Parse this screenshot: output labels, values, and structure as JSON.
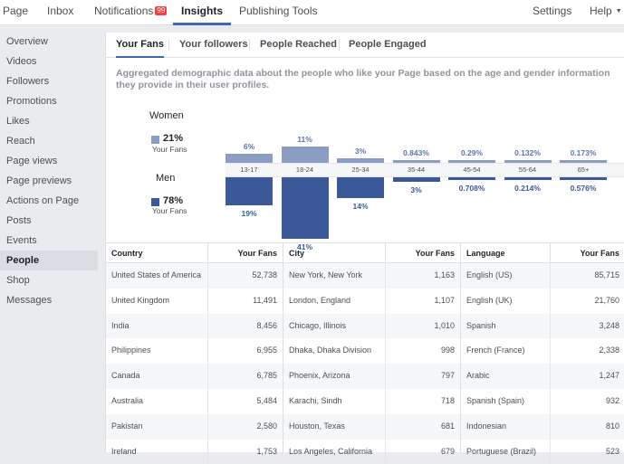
{
  "topnav": {
    "page": "Page",
    "inbox": "Inbox",
    "notifications": "Notifications",
    "notifications_badge": "99",
    "insights": "Insights",
    "publishing_tools": "Publishing Tools",
    "settings": "Settings",
    "help": "Help"
  },
  "sidebar": {
    "items": [
      {
        "label": "Overview"
      },
      {
        "label": "Videos"
      },
      {
        "label": "Followers"
      },
      {
        "label": "Promotions"
      },
      {
        "label": "Likes"
      },
      {
        "label": "Reach"
      },
      {
        "label": "Page views"
      },
      {
        "label": "Page previews"
      },
      {
        "label": "Actions on Page"
      },
      {
        "label": "Posts"
      },
      {
        "label": "Events"
      },
      {
        "label": "People"
      },
      {
        "label": "Shop"
      },
      {
        "label": "Messages"
      }
    ]
  },
  "subtabs": {
    "your_fans": "Your Fans",
    "your_followers": "Your followers",
    "people_reached": "People Reached",
    "people_engaged": "People Engaged"
  },
  "description": "Aggregated demographic data about the people who like your Page based on the age and gender information they provide in their user profiles.",
  "gender": {
    "women_label": "Women",
    "women_pct": "21%",
    "women_sub": "Your Fans",
    "men_label": "Men",
    "men_pct": "78%",
    "men_sub": "Your Fans",
    "women_color": "#8b9dc3",
    "men_color": "#3b5998"
  },
  "chart_data": {
    "type": "bar",
    "categories": [
      "13-17",
      "18-24",
      "25-34",
      "35-44",
      "45-54",
      "55-64",
      "65+"
    ],
    "series": [
      {
        "name": "Women",
        "values": [
          6,
          11,
          3,
          0.843,
          0.29,
          0.132,
          0.173
        ],
        "labels": [
          "6%",
          "11%",
          "3%",
          "0.843%",
          "0.29%",
          "0.132%",
          "0.173%"
        ]
      },
      {
        "name": "Men",
        "values": [
          19,
          41,
          14,
          3,
          0.708,
          0.214,
          0.576
        ],
        "labels": [
          "19%",
          "41%",
          "14%",
          "3%",
          "0.708%",
          "0.214%",
          "0.576%"
        ]
      }
    ]
  },
  "tables": {
    "country": {
      "header": "Country",
      "value_header": "Your Fans",
      "rows": [
        {
          "name": "United States of America",
          "value": "52,738"
        },
        {
          "name": "United Kingdom",
          "value": "11,491"
        },
        {
          "name": "India",
          "value": "8,456"
        },
        {
          "name": "Philippines",
          "value": "6,955"
        },
        {
          "name": "Canada",
          "value": "6,785"
        },
        {
          "name": "Australia",
          "value": "5,484"
        },
        {
          "name": "Pakistan",
          "value": "2,580"
        },
        {
          "name": "Ireland",
          "value": "1,753"
        }
      ]
    },
    "city": {
      "header": "City",
      "value_header": "Your Fans",
      "rows": [
        {
          "name": "New York, New York",
          "value": "1,163"
        },
        {
          "name": "London, England",
          "value": "1,107"
        },
        {
          "name": "Chicago, Illinois",
          "value": "1,010"
        },
        {
          "name": "Dhaka, Dhaka Division",
          "value": "998"
        },
        {
          "name": "Phoenix, Arizona",
          "value": "797"
        },
        {
          "name": "Karachi, Sindh",
          "value": "718"
        },
        {
          "name": "Houston, Texas",
          "value": "681"
        },
        {
          "name": "Los Angeles, California",
          "value": "679"
        }
      ]
    },
    "language": {
      "header": "Language",
      "value_header": "Your Fans",
      "rows": [
        {
          "name": "English (US)",
          "value": "85,715"
        },
        {
          "name": "English (UK)",
          "value": "21,760"
        },
        {
          "name": "Spanish",
          "value": "3,248"
        },
        {
          "name": "French (France)",
          "value": "2,338"
        },
        {
          "name": "Arabic",
          "value": "1,247"
        },
        {
          "name": "Spanish (Spain)",
          "value": "932"
        },
        {
          "name": "Indonesian",
          "value": "810"
        },
        {
          "name": "Portuguese (Brazil)",
          "value": "523"
        }
      ]
    }
  }
}
